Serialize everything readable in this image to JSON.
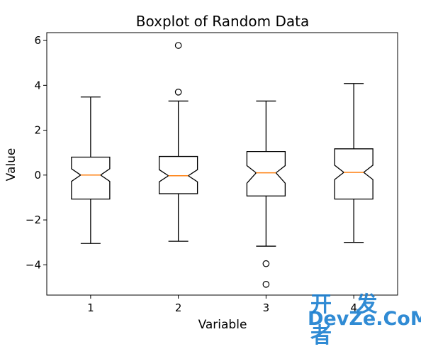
{
  "chart_data": {
    "type": "boxplot",
    "title": "Boxplot of Random Data",
    "xlabel": "Variable",
    "ylabel": "Value",
    "ylim": [
      -5.35,
      6.35
    ],
    "categories": [
      "1",
      "2",
      "3",
      "4"
    ],
    "y_ticks": [
      6,
      4,
      2,
      0,
      -2,
      -4
    ],
    "y_tick_labels": [
      "6",
      "4",
      "2",
      "0",
      "−2",
      "−4"
    ],
    "notched": true,
    "median_color": "#ff7f0e",
    "box_color": "#000000",
    "grid": false,
    "boxes": [
      {
        "label": "1",
        "whisker_low": -3.05,
        "q1": -1.07,
        "median": 0.0,
        "q3": 0.8,
        "whisker_high": 3.48,
        "notch_low": -0.28,
        "notch_high": 0.28,
        "outliers": []
      },
      {
        "label": "2",
        "whisker_low": -2.95,
        "q1": -0.83,
        "median": -0.03,
        "q3": 0.83,
        "whisker_high": 3.3,
        "notch_low": -0.3,
        "notch_high": 0.24,
        "outliers": [
          3.7,
          5.78
        ]
      },
      {
        "label": "3",
        "whisker_low": -3.17,
        "q1": -0.93,
        "median": 0.1,
        "q3": 1.05,
        "whisker_high": 3.3,
        "notch_low": -0.36,
        "notch_high": 0.42,
        "outliers": [
          -3.95,
          -4.87
        ]
      },
      {
        "label": "4",
        "whisker_low": -3.0,
        "q1": -1.07,
        "median": 0.12,
        "q3": 1.17,
        "whisker_high": 4.08,
        "notch_low": -0.2,
        "notch_high": 0.44,
        "outliers": []
      }
    ]
  },
  "watermark": {
    "line1": "开 发 者",
    "line2": "DevZe.CoM"
  }
}
